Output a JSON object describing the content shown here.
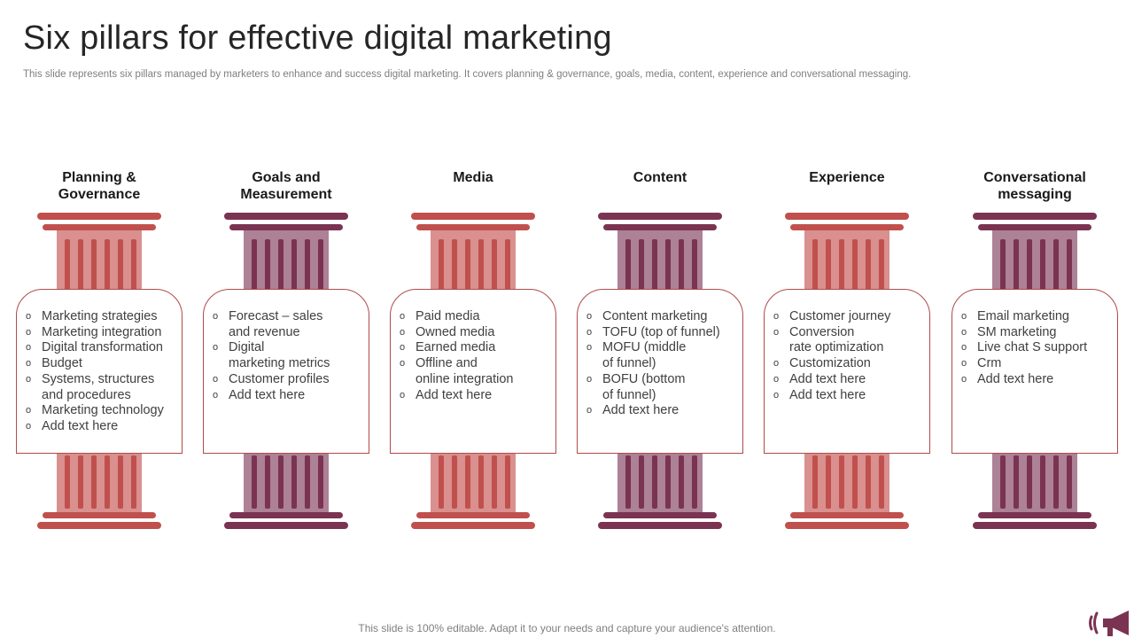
{
  "title": "Six pillars for effective digital marketing",
  "subtitle": "This slide represents six pillars managed by marketers to enhance and success digital marketing. It covers planning & governance, goals, media, content, experience and conversational messaging.",
  "colors": {
    "light": {
      "cap": "#c0504d",
      "shaft": "#d9908e",
      "flute": "#c0504d"
    },
    "dark": {
      "cap": "#7b3352",
      "shaft": "#ad8196",
      "flute": "#7b3352"
    },
    "card_border": "#b04a4a"
  },
  "pillars": [
    {
      "heading": "Planning &\nGovernance",
      "color": "light",
      "items": [
        "Marketing strategies",
        "Marketing integration",
        "Digital transformation",
        "Budget",
        "Systems, structures\nand procedures",
        "Marketing technology",
        "Add text here"
      ]
    },
    {
      "heading": "Goals and\nMeasurement",
      "color": "dark",
      "items": [
        "Forecast – sales\nand revenue",
        "Digital\nmarketing metrics",
        "Customer profiles",
        "Add text here"
      ]
    },
    {
      "heading": "Media",
      "color": "light",
      "items": [
        "Paid media",
        "Owned media",
        "Earned media",
        "Offline and\nonline integration",
        "Add text here"
      ]
    },
    {
      "heading": "Content",
      "color": "dark",
      "items": [
        "Content marketing",
        "TOFU (top of funnel)",
        "MOFU (middle\nof funnel)",
        "BOFU (bottom\nof funnel)",
        "Add text here"
      ]
    },
    {
      "heading": "Experience",
      "color": "light",
      "items": [
        "Customer journey",
        "Conversion\nrate optimization",
        "Customization",
        "Add text here",
        "Add text here"
      ]
    },
    {
      "heading": "Conversational\nmessaging",
      "color": "dark",
      "items": [
        "Email marketing",
        "SM marketing",
        "Live chat S support",
        "Crm",
        "Add text here"
      ]
    }
  ],
  "footer": "This slide is 100% editable. Adapt it to your needs and capture your audience's attention.",
  "logo_icon": "megaphone-icon"
}
